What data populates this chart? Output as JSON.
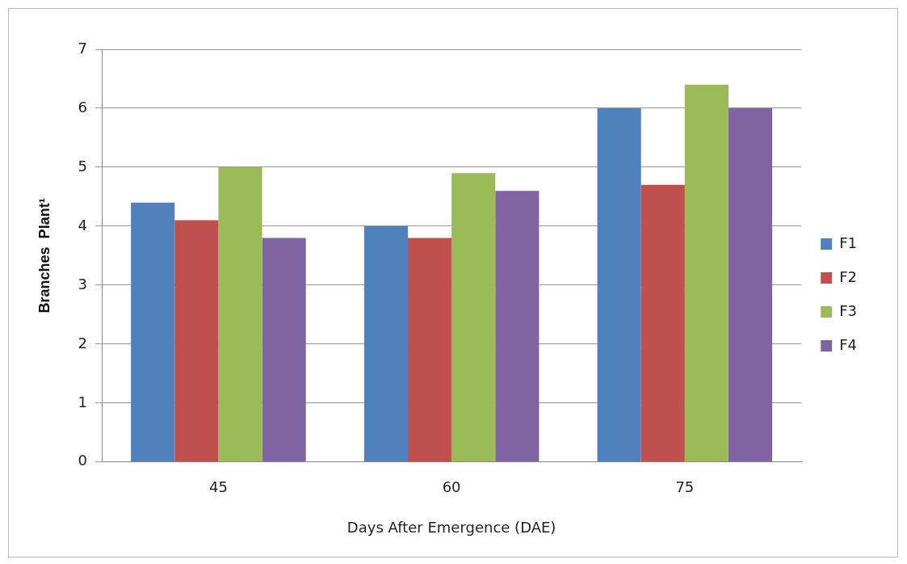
{
  "chart_data": {
    "type": "bar",
    "xlabel": "Days After Emergence (DAE)",
    "ylabel": "Branches  Plant¹",
    "categories": [
      "45",
      "60",
      "75"
    ],
    "series": [
      {
        "name": "F1",
        "color": "#4f81bd",
        "values": [
          4.4,
          4.0,
          6.0
        ]
      },
      {
        "name": "F2",
        "color": "#c0504d",
        "values": [
          4.1,
          3.8,
          4.7
        ]
      },
      {
        "name": "F3",
        "color": "#9bbb59",
        "values": [
          5.0,
          4.9,
          6.4
        ]
      },
      {
        "name": "F4",
        "color": "#8064a2",
        "values": [
          3.8,
          4.6,
          6.0
        ]
      }
    ],
    "ylim": [
      0,
      7
    ],
    "yticks": [
      0,
      1,
      2,
      3,
      4,
      5,
      6,
      7
    ],
    "grid": "y",
    "legend": "right"
  }
}
